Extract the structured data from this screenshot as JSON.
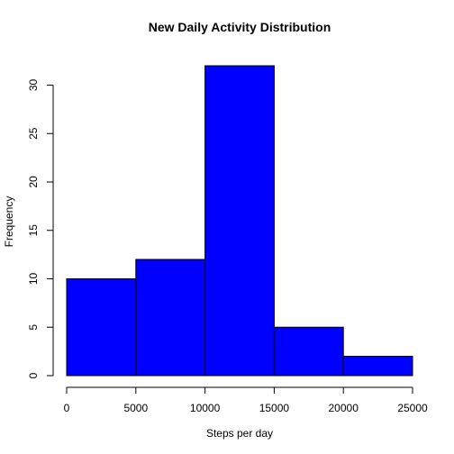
{
  "chart_data": {
    "type": "bar",
    "title": "New Daily Activity Distribution",
    "xlabel": "Steps per day",
    "ylabel": "Frequency",
    "bins": [
      {
        "from": 0,
        "to": 5000,
        "count": 10
      },
      {
        "from": 5000,
        "to": 10000,
        "count": 12
      },
      {
        "from": 10000,
        "to": 15000,
        "count": 32
      },
      {
        "from": 15000,
        "to": 20000,
        "count": 5
      },
      {
        "from": 20000,
        "to": 25000,
        "count": 2
      }
    ],
    "xlim": [
      0,
      25000
    ],
    "ylim": [
      0,
      32
    ],
    "x_ticks": [
      0,
      5000,
      10000,
      15000,
      20000,
      25000
    ],
    "y_ticks": [
      0,
      5,
      10,
      15,
      20,
      25,
      30
    ],
    "grid": false,
    "colors": {
      "bar_fill": "#0000ff",
      "bar_border": "#000000"
    }
  }
}
